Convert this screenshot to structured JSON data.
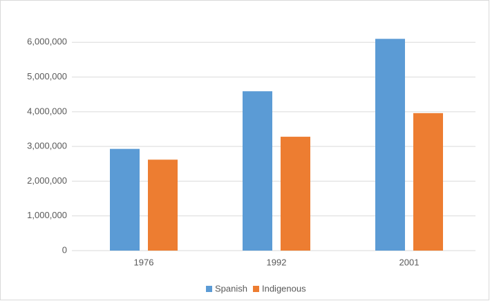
{
  "chart_data": {
    "type": "bar",
    "categories": [
      "1976",
      "1992",
      "2001"
    ],
    "series": [
      {
        "name": "Spanish",
        "color": "#5b9bd5",
        "values": [
          2930000,
          4590000,
          6100000
        ]
      },
      {
        "name": "Indigenous",
        "color": "#ed7d31",
        "values": [
          2620000,
          3280000,
          3960000
        ]
      }
    ],
    "ylim": [
      0,
      7000000
    ],
    "yticks": [
      0,
      {
        "value": 1000000,
        "label": "1,000,000"
      },
      {
        "value": 2000000,
        "label": "2,000,000"
      },
      {
        "value": 3000000,
        "label": "3,000,000"
      },
      {
        "value": 4000000,
        "label": "4,000,000"
      },
      {
        "value": 5000000,
        "label": "5,000,000"
      },
      {
        "value": 6000000,
        "label": "6,000,000"
      }
    ],
    "grid": true,
    "legend": "bottom"
  }
}
